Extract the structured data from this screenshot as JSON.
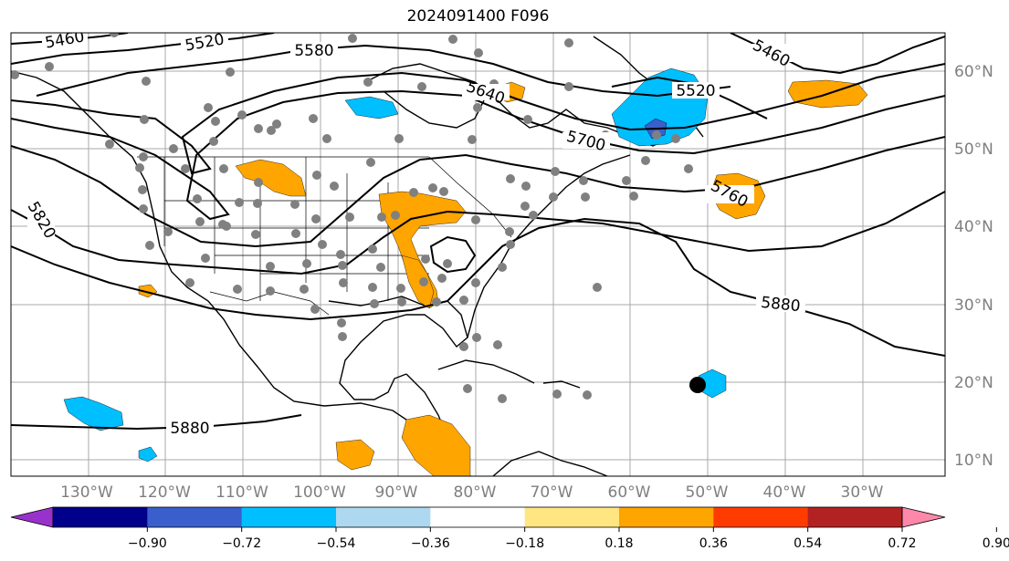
{
  "title": "2024091400 F096",
  "longitude_labels": [
    "130°W",
    "120°W",
    "110°W",
    "100°W",
    "90°W",
    "80°W",
    "70°W",
    "60°W",
    "50°W",
    "40°W",
    "30°W"
  ],
  "latitude_labels": [
    "60°N",
    "50°N",
    "40°N",
    "30°N",
    "20°N",
    "10°N"
  ],
  "contour_labels": [
    "5460",
    "5520",
    "5580",
    "5640",
    "5700",
    "5760",
    "5820",
    "5880",
    "5520",
    "5460",
    "5880"
  ],
  "colorbar": {
    "ticks": [
      "−0.90",
      "−0.72",
      "−0.54",
      "−0.36",
      "−0.18",
      "0.18",
      "0.36",
      "0.54",
      "0.72",
      "0.90"
    ],
    "colors": [
      "#9932cc",
      "#00008b",
      "#3a5fcd",
      "#00bfff",
      "#add8f0",
      "#ffffff",
      "#ffe680",
      "#ffa500",
      "#ff3c00",
      "#b22222",
      "#ff88aa"
    ]
  },
  "colors": {
    "positive_anomaly": "#ffa500",
    "negative_anomaly": "#00bfff",
    "strong_negative": "#3a5fcd",
    "station_dot": "#808080",
    "storm_marker": "#000000"
  }
}
